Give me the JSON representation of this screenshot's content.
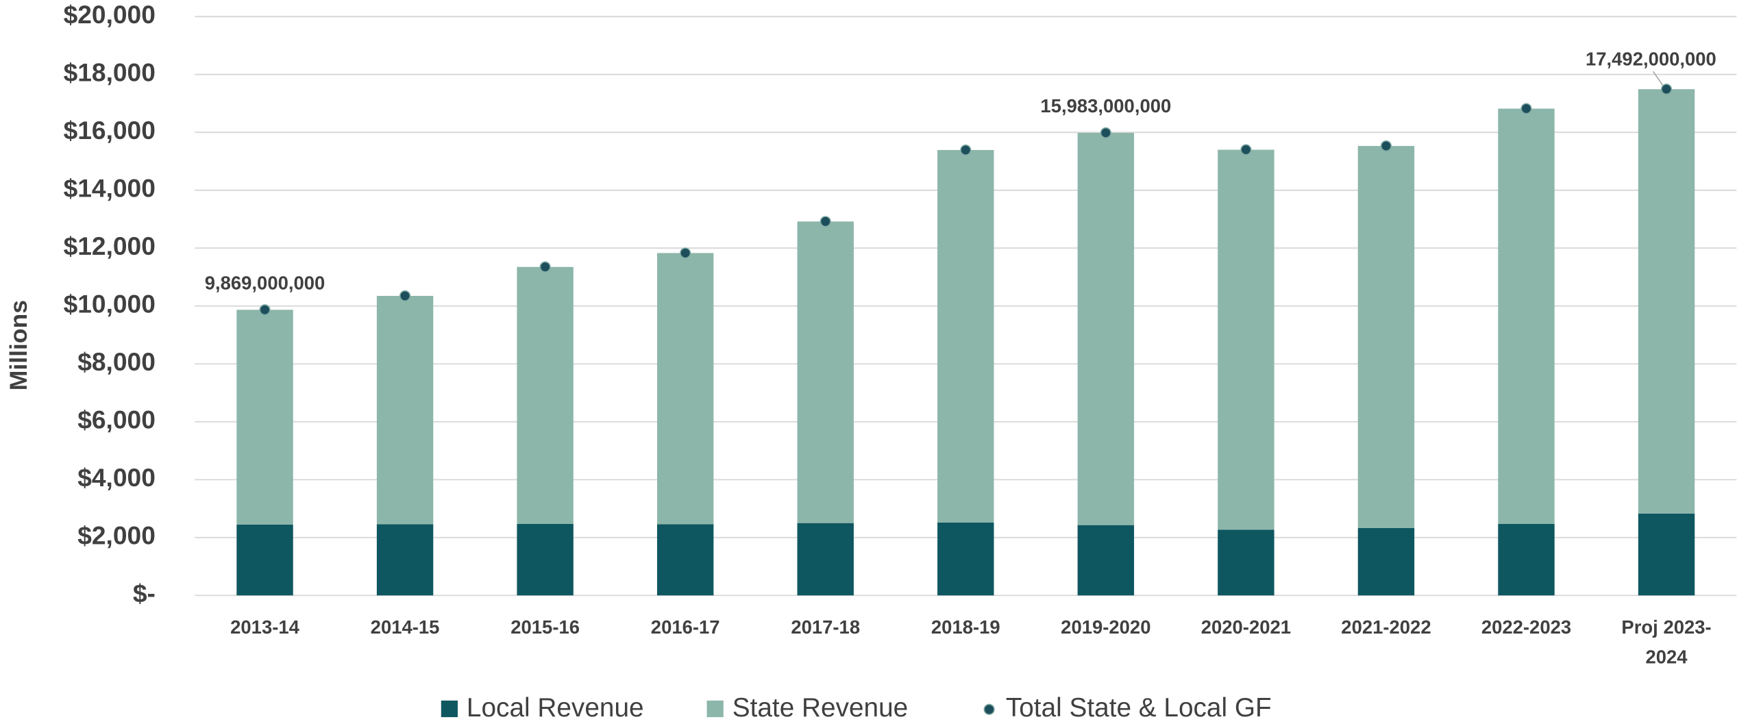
{
  "chart_data": {
    "type": "stacked-bar",
    "y_axis_label": "Millions",
    "categories": [
      "2013-14",
      "2014-15",
      "2015-16",
      "2016-17",
      "2017-18",
      "2018-19",
      "2019-2020",
      "2020-2021",
      "2021-2022",
      "2022-2023",
      "Proj 2023-2024"
    ],
    "series": [
      {
        "name": "Local Revenue",
        "color": "#0f5760",
        "values": [
          2450,
          2460,
          2470,
          2460,
          2500,
          2520,
          2430,
          2270,
          2330,
          2470,
          2830
        ]
      },
      {
        "name": "State Revenue",
        "color": "#8db6ab",
        "values": [
          7419,
          7890,
          8880,
          9370,
          10420,
          12870,
          13553,
          13130,
          13200,
          14350,
          14662
        ]
      },
      {
        "name": "Total State & Local GF",
        "color": "#1d4e5b",
        "type": "scatter",
        "values": [
          9869,
          10350,
          11350,
          11830,
          12920,
          15390,
          15983,
          15400,
          15530,
          16820,
          17492
        ],
        "value_labels": [
          "9,869,000,000",
          null,
          null,
          null,
          null,
          null,
          "15,983,000,000",
          null,
          null,
          null,
          "17,492,000,000"
        ]
      }
    ],
    "ylim": [
      0,
      20000
    ],
    "yticks": [
      {
        "value": 0,
        "label": "$-"
      },
      {
        "value": 2000,
        "label": "$2,000"
      },
      {
        "value": 4000,
        "label": "$4,000"
      },
      {
        "value": 6000,
        "label": "$6,000"
      },
      {
        "value": 8000,
        "label": "$8,000"
      },
      {
        "value": 10000,
        "label": "$10,000"
      },
      {
        "value": 12000,
        "label": "$12,000"
      },
      {
        "value": 14000,
        "label": "$14,000"
      },
      {
        "value": 16000,
        "label": "$16,000"
      },
      {
        "value": 18000,
        "label": "$18,000"
      },
      {
        "value": 20000,
        "label": "$20,000"
      }
    ],
    "grid": true,
    "legend": "bottom"
  }
}
